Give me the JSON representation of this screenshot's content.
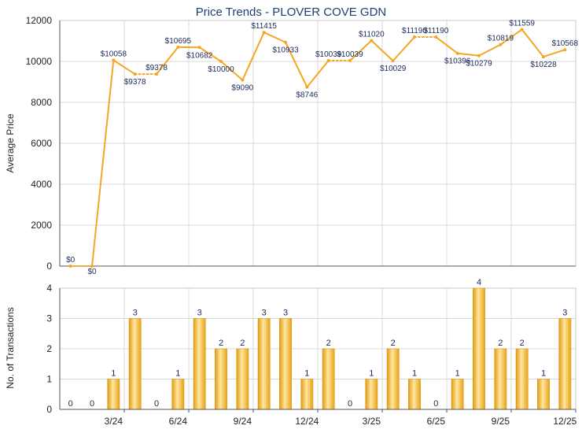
{
  "chart_data": [
    {
      "type": "line",
      "title": "Price Trends - PLOVER COVE GDN",
      "ylabel": "Average Price",
      "ylim": [
        0,
        12000
      ],
      "yticks": [
        0,
        2000,
        4000,
        6000,
        8000,
        10000,
        12000
      ],
      "x": [
        "2024-01",
        "2024-02",
        "2024-03",
        "2024-04",
        "2024-05",
        "2024-06",
        "2024-07",
        "2024-08",
        "2024-09",
        "2024-10",
        "2024-11",
        "2024-12",
        "2025-01",
        "2025-02",
        "2025-03",
        "2025-04",
        "2025-05",
        "2025-06",
        "2025-07",
        "2025-08",
        "2025-09",
        "2025-10",
        "2025-11",
        "2025-12"
      ],
      "series": [
        {
          "values": [
            0,
            0,
            10058,
            9378,
            9378,
            10695,
            10682,
            10000,
            9090,
            11415,
            10933,
            8746,
            10039,
            10039,
            11020,
            10029,
            11190,
            11190,
            10396,
            10279,
            10819,
            11559,
            10228,
            10568
          ],
          "labels": [
            "$0",
            "$0",
            "$10058",
            "$9378",
            "$9378",
            "$10695",
            "$10682",
            "$10000",
            "$9090",
            "$11415",
            "$10933",
            "$8746",
            "$10039",
            "$10039",
            "$11020",
            "$10029",
            "$11190",
            "$11190",
            "$10396",
            "$10279",
            "$10819",
            "$11559",
            "$10228",
            "$10568"
          ],
          "dotted_segments": [
            [
              0,
              1
            ],
            [
              3,
              4
            ],
            [
              12,
              13
            ],
            [
              16,
              17
            ]
          ],
          "color": "#f5a623"
        }
      ],
      "grid": true
    },
    {
      "type": "bar",
      "ylabel": "No. of Transactions",
      "ylim": [
        0,
        4
      ],
      "yticks": [
        0,
        1,
        2,
        3,
        4
      ],
      "categories": [
        "2024-01",
        "2024-02",
        "2024-03",
        "2024-04",
        "2024-05",
        "2024-06",
        "2024-07",
        "2024-08",
        "2024-09",
        "2024-10",
        "2024-11",
        "2024-12",
        "2025-01",
        "2025-02",
        "2025-03",
        "2025-04",
        "2025-05",
        "2025-06",
        "2025-07",
        "2025-08",
        "2025-09",
        "2025-10",
        "2025-11",
        "2025-12"
      ],
      "values": [
        0,
        0,
        1,
        3,
        0,
        1,
        3,
        2,
        2,
        3,
        3,
        1,
        2,
        0,
        1,
        2,
        1,
        0,
        1,
        4,
        2,
        2,
        1,
        3
      ],
      "xtick_labels": [
        {
          "index": 2,
          "label": "3/24"
        },
        {
          "index": 5,
          "label": "6/24"
        },
        {
          "index": 8,
          "label": "9/24"
        },
        {
          "index": 11,
          "label": "12/24"
        },
        {
          "index": 14,
          "label": "3/25"
        },
        {
          "index": 17,
          "label": "6/25"
        },
        {
          "index": 20,
          "label": "9/25"
        },
        {
          "index": 23,
          "label": "12/25"
        }
      ],
      "grid": true,
      "color": "#f0b020"
    }
  ],
  "colors": {
    "line": "#f5a623",
    "bar_light": "#fde9a8",
    "bar_dark": "#e9a216",
    "grid": "#d8d8d8",
    "title": "#1f3f74",
    "value_label": "#1a2a5a"
  }
}
